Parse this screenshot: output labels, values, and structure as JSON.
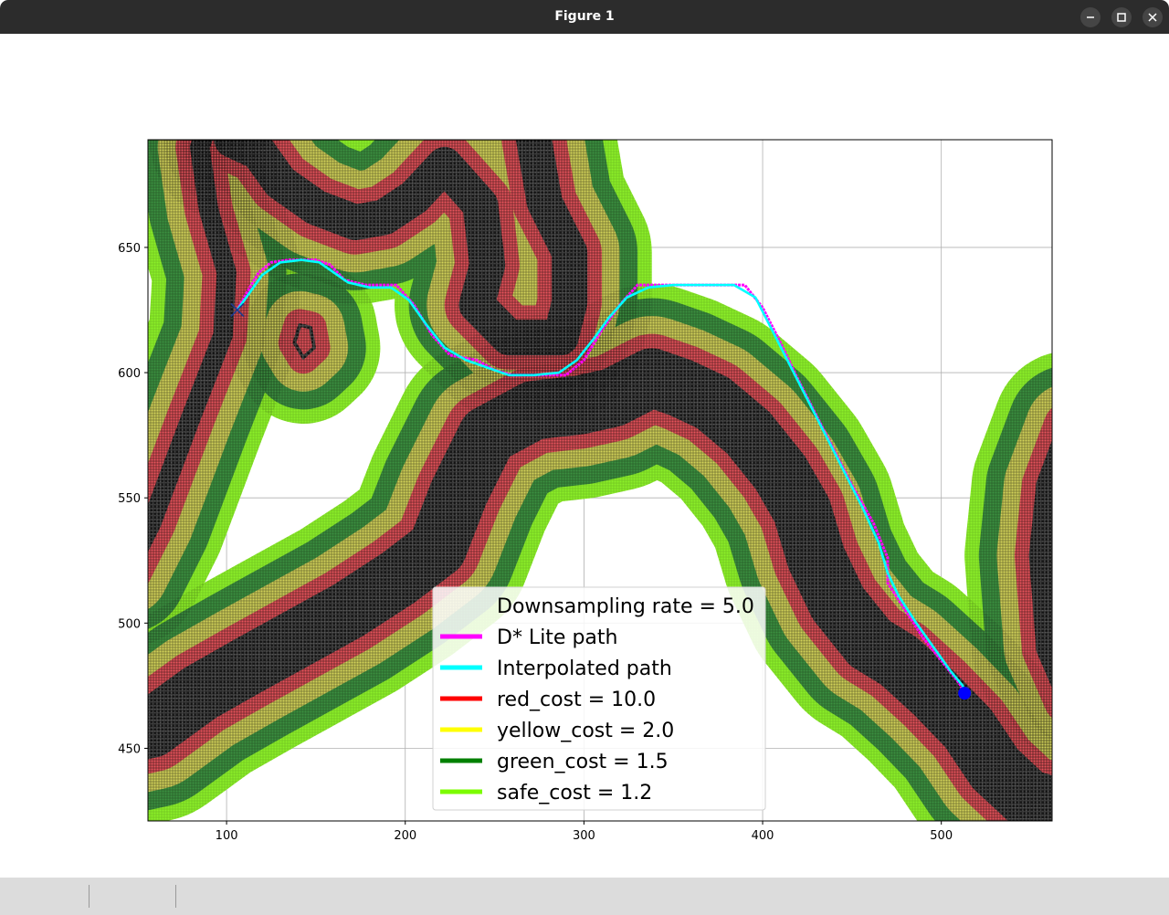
{
  "window": {
    "title": "Figure 1",
    "buttons": [
      {
        "name": "minimize-button",
        "icon": "minimize-icon"
      },
      {
        "name": "maximize-button",
        "icon": "maximize-icon"
      },
      {
        "name": "close-button",
        "icon": "close-icon"
      }
    ]
  },
  "chart_data": {
    "type": "scatter",
    "title": "",
    "xlabel": "",
    "ylabel": "",
    "xlim": [
      56,
      562
    ],
    "ylim": [
      421,
      693
    ],
    "xticks": [
      100,
      200,
      300,
      400,
      500
    ],
    "yticks": [
      450,
      500,
      550,
      600,
      650
    ],
    "grid": true,
    "legend_position": "lower-center",
    "legend": [
      {
        "label": "Downsampling rate = 5.0",
        "color": null
      },
      {
        "label": "D* Lite path",
        "color": "#ff00ff"
      },
      {
        "label": "Interpolated path",
        "color": "#00ffff"
      },
      {
        "label": "red_cost = 10.0",
        "color": "#ff0000"
      },
      {
        "label": "yellow_cost = 2.0",
        "color": "#ffff00"
      },
      {
        "label": "green_cost = 1.5",
        "color": "#008000"
      },
      {
        "label": "safe_cost = 1.2",
        "color": "#7cfc00"
      }
    ],
    "cost_zone_colors": {
      "obstacle": "#333333",
      "red": "#e8545c",
      "yellow": "#d2d25a",
      "green": "#3c9040",
      "safe": "#8cf028"
    },
    "start_marker": {
      "shape": "x",
      "color": "#1f3a8f",
      "x": 106,
      "y": 625
    },
    "goal_marker": {
      "shape": "circle",
      "color": "#0000ff",
      "x": 513,
      "y": 472
    },
    "obstacle_centerlines": [
      {
        "name": "left-coast",
        "points": [
          [
            44,
            520
          ],
          [
            58,
            540
          ],
          [
            80,
            582
          ],
          [
            98,
            615
          ],
          [
            100,
            640
          ],
          [
            90,
            665
          ],
          [
            85,
            690
          ],
          [
            95,
            710
          ]
        ],
        "width": 11
      },
      {
        "name": "upper-landmass",
        "points": [
          [
            103,
            693
          ],
          [
            118,
            688
          ],
          [
            130,
            676
          ],
          [
            150,
            666
          ],
          [
            172,
            660
          ],
          [
            188,
            662
          ],
          [
            205,
            670
          ],
          [
            222,
            683
          ],
          [
            242,
            667
          ],
          [
            246,
            643
          ],
          [
            240,
            627
          ],
          [
            258,
            614
          ],
          [
            272,
            614
          ],
          [
            287,
            614
          ],
          [
            292,
            628
          ],
          [
            292,
            648
          ],
          [
            278,
            668
          ],
          [
            272,
            693
          ]
        ],
        "width": 20
      },
      {
        "name": "main-lower-landmass",
        "points": [
          [
            38,
            455
          ],
          [
            58,
            458
          ],
          [
            85,
            472
          ],
          [
            112,
            483
          ],
          [
            140,
            494
          ],
          [
            168,
            505
          ],
          [
            196,
            518
          ],
          [
            218,
            530
          ],
          [
            230,
            552
          ],
          [
            246,
            575
          ],
          [
            272,
            585
          ],
          [
            297,
            587
          ],
          [
            316,
            590
          ],
          [
            338,
            598
          ],
          [
            354,
            594
          ],
          [
            372,
            588
          ],
          [
            392,
            576
          ],
          [
            410,
            560
          ],
          [
            422,
            545
          ],
          [
            430,
            526
          ],
          [
            442,
            508
          ],
          [
            460,
            492
          ],
          [
            476,
            485
          ],
          [
            496,
            472
          ],
          [
            515,
            458
          ],
          [
            530,
            442
          ],
          [
            548,
            430
          ],
          [
            575,
            424
          ]
        ],
        "width": 33
      },
      {
        "name": "right-coast",
        "points": [
          [
            572,
            578
          ],
          [
            560,
            555
          ],
          [
            556,
            527
          ],
          [
            560,
            490
          ],
          [
            572,
            470
          ]
        ],
        "width": 14
      },
      {
        "name": "island",
        "points": [
          [
            141,
            619
          ],
          [
            138,
            612
          ],
          [
            143,
            606
          ],
          [
            149,
            610
          ],
          [
            147,
            618
          ],
          [
            141,
            619
          ]
        ],
        "width": 2
      }
    ],
    "series": [
      {
        "name": "D* Lite path",
        "color": "#ff00ff",
        "points": [
          [
            106,
            625
          ],
          [
            113,
            634
          ],
          [
            118,
            640
          ],
          [
            125,
            644
          ],
          [
            135,
            645
          ],
          [
            150,
            645
          ],
          [
            158,
            643
          ],
          [
            166,
            637
          ],
          [
            178,
            635
          ],
          [
            195,
            635
          ],
          [
            205,
            627
          ],
          [
            215,
            615
          ],
          [
            225,
            607
          ],
          [
            240,
            605
          ],
          [
            250,
            601
          ],
          [
            260,
            599
          ],
          [
            275,
            599
          ],
          [
            290,
            599
          ],
          [
            300,
            605
          ],
          [
            310,
            617
          ],
          [
            320,
            627
          ],
          [
            330,
            635
          ],
          [
            350,
            635
          ],
          [
            370,
            635
          ],
          [
            390,
            635
          ],
          [
            400,
            626
          ],
          [
            410,
            612
          ],
          [
            420,
            597
          ],
          [
            430,
            583
          ],
          [
            440,
            569
          ],
          [
            450,
            555
          ],
          [
            462,
            540
          ],
          [
            470,
            526
          ],
          [
            470,
            516
          ],
          [
            480,
            505
          ],
          [
            490,
            494
          ],
          [
            500,
            485
          ],
          [
            510,
            476
          ],
          [
            513,
            472
          ]
        ]
      },
      {
        "name": "Interpolated path",
        "color": "#00ffff",
        "points": [
          [
            106,
            625
          ],
          [
            112,
            631
          ],
          [
            120,
            639
          ],
          [
            130,
            644
          ],
          [
            142,
            645
          ],
          [
            152,
            644
          ],
          [
            160,
            640
          ],
          [
            168,
            636
          ],
          [
            180,
            634
          ],
          [
            192,
            634
          ],
          [
            202,
            629
          ],
          [
            212,
            619
          ],
          [
            222,
            610
          ],
          [
            234,
            605
          ],
          [
            246,
            602
          ],
          [
            258,
            599
          ],
          [
            272,
            599
          ],
          [
            286,
            600
          ],
          [
            296,
            605
          ],
          [
            306,
            614
          ],
          [
            314,
            622
          ],
          [
            324,
            630
          ],
          [
            336,
            634
          ],
          [
            350,
            635
          ],
          [
            368,
            635
          ],
          [
            384,
            635
          ],
          [
            396,
            630
          ],
          [
            406,
            616
          ],
          [
            416,
            602
          ],
          [
            426,
            588
          ],
          [
            436,
            574
          ],
          [
            446,
            560
          ],
          [
            456,
            546
          ],
          [
            465,
            532
          ],
          [
            470,
            520
          ],
          [
            476,
            511
          ],
          [
            486,
            500
          ],
          [
            496,
            490
          ],
          [
            505,
            481
          ],
          [
            512,
            475
          ],
          [
            513,
            472
          ]
        ]
      }
    ]
  }
}
